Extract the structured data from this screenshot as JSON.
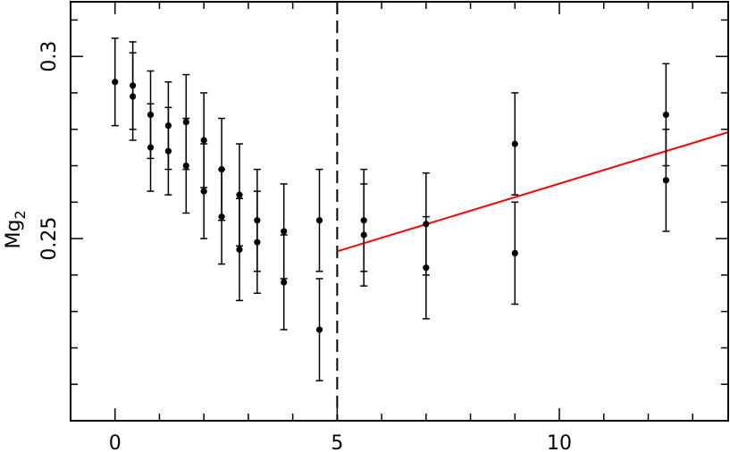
{
  "chart_data": {
    "type": "scatter",
    "title": "",
    "xlabel": "",
    "ylabel": "Mg",
    "ylabel_subscript": "2",
    "xlim": [
      -1.0,
      13.8
    ],
    "ylim": [
      0.2,
      0.315
    ],
    "x_ticks_major": [
      0,
      5,
      10
    ],
    "x_tick_labels": [
      "0",
      "5",
      "10"
    ],
    "x_ticks_minor_step": 1,
    "y_ticks_major": [
      0.25,
      0.3
    ],
    "y_tick_labels": [
      "0.25",
      "0.3"
    ],
    "y_ticks_minor_step": 0.01,
    "grid": false,
    "legend": "none",
    "point_color": "#000000",
    "fit_color": "#ff0000",
    "divider": {
      "x": 5,
      "style": "dashed"
    },
    "series": [
      {
        "points": [
          {
            "x": 0.0,
            "y": 0.293,
            "err": 0.012
          },
          {
            "x": 0.4,
            "y": 0.292,
            "err": 0.012
          },
          {
            "x": 0.4,
            "y": 0.289,
            "err": 0.012
          },
          {
            "x": 0.8,
            "y": 0.284,
            "err": 0.012
          },
          {
            "x": 0.8,
            "y": 0.275,
            "err": 0.012
          },
          {
            "x": 1.2,
            "y": 0.281,
            "err": 0.012
          },
          {
            "x": 1.2,
            "y": 0.274,
            "err": 0.012
          },
          {
            "x": 1.6,
            "y": 0.282,
            "err": 0.013
          },
          {
            "x": 1.6,
            "y": 0.27,
            "err": 0.013
          },
          {
            "x": 2.0,
            "y": 0.277,
            "err": 0.013
          },
          {
            "x": 2.0,
            "y": 0.263,
            "err": 0.013
          },
          {
            "x": 2.4,
            "y": 0.269,
            "err": 0.014
          },
          {
            "x": 2.4,
            "y": 0.256,
            "err": 0.013
          },
          {
            "x": 2.8,
            "y": 0.262,
            "err": 0.014
          },
          {
            "x": 2.8,
            "y": 0.247,
            "err": 0.014
          },
          {
            "x": 3.2,
            "y": 0.255,
            "err": 0.014
          },
          {
            "x": 3.2,
            "y": 0.249,
            "err": 0.014
          },
          {
            "x": 3.8,
            "y": 0.252,
            "err": 0.013
          },
          {
            "x": 3.8,
            "y": 0.238,
            "err": 0.013
          },
          {
            "x": 4.6,
            "y": 0.255,
            "err": 0.014
          },
          {
            "x": 4.6,
            "y": 0.225,
            "err": 0.014
          },
          {
            "x": 5.6,
            "y": 0.255,
            "err": 0.014
          },
          {
            "x": 5.6,
            "y": 0.251,
            "err": 0.014
          },
          {
            "x": 7.0,
            "y": 0.254,
            "err": 0.014
          },
          {
            "x": 7.0,
            "y": 0.242,
            "err": 0.014
          },
          {
            "x": 9.0,
            "y": 0.276,
            "err": 0.014
          },
          {
            "x": 9.0,
            "y": 0.246,
            "err": 0.014
          },
          {
            "x": 12.4,
            "y": 0.284,
            "err": 0.014
          },
          {
            "x": 12.4,
            "y": 0.266,
            "err": 0.014
          }
        ]
      }
    ],
    "fit_line": {
      "x": [
        5.0,
        13.8
      ],
      "y": [
        0.2465,
        0.2792
      ]
    }
  }
}
